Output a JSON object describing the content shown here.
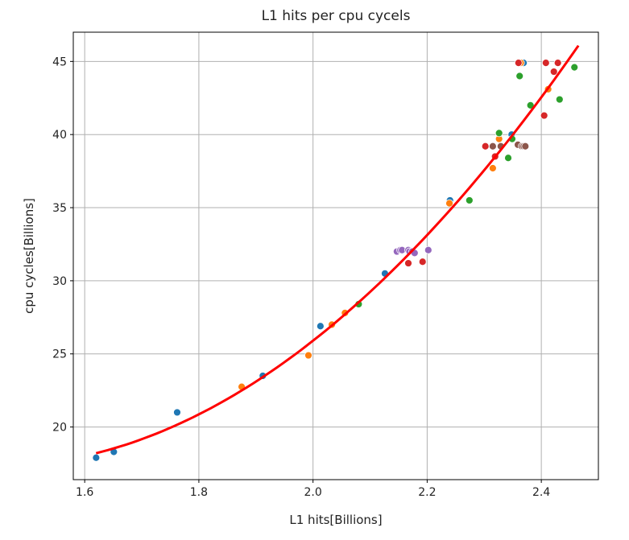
{
  "chart_data": {
    "type": "scatter",
    "title": "L1 hits per cpu cycels",
    "xlabel": "L1 hits[Billions]",
    "ylabel": "cpu cycles[Billions]",
    "xlim": [
      1.58,
      2.5
    ],
    "ylim": [
      16.4,
      47.0
    ],
    "xticks": [
      1.6,
      1.8,
      2.0,
      2.2,
      2.4
    ],
    "xtick_labels": [
      "1.6",
      "1.8",
      "2.0",
      "2.2",
      "2.4"
    ],
    "yticks": [
      20,
      25,
      30,
      35,
      40,
      45
    ],
    "ytick_labels": [
      "20",
      "25",
      "30",
      "35",
      "40",
      "45"
    ],
    "grid": true,
    "series": [
      {
        "color": "#1f77b4",
        "points": [
          [
            1.62,
            17.9
          ],
          [
            1.651,
            18.3
          ],
          [
            1.762,
            21.0
          ],
          [
            1.912,
            23.5
          ],
          [
            2.013,
            26.9
          ],
          [
            2.126,
            30.5
          ],
          [
            2.24,
            35.5
          ],
          [
            2.348,
            40.0
          ],
          [
            2.369,
            44.9
          ]
        ]
      },
      {
        "color": "#ff7f0e",
        "points": [
          [
            1.875,
            22.75
          ],
          [
            1.992,
            24.9
          ],
          [
            2.033,
            27.0
          ],
          [
            2.056,
            27.8
          ],
          [
            2.239,
            35.3
          ],
          [
            2.315,
            37.7
          ],
          [
            2.326,
            39.7
          ],
          [
            2.412,
            43.1
          ],
          [
            2.364,
            44.9
          ]
        ]
      },
      {
        "color": "#2ca02c",
        "points": [
          [
            2.08,
            28.4
          ],
          [
            2.274,
            35.5
          ],
          [
            2.362,
            44.0
          ],
          [
            2.326,
            40.1
          ],
          [
            2.349,
            39.7
          ],
          [
            2.342,
            38.4
          ],
          [
            2.381,
            42.0
          ],
          [
            2.432,
            42.4
          ],
          [
            2.458,
            44.6
          ]
        ]
      },
      {
        "color": "#d62728",
        "points": [
          [
            2.167,
            31.2
          ],
          [
            2.192,
            31.3
          ],
          [
            2.302,
            39.2
          ],
          [
            2.319,
            38.5
          ],
          [
            2.36,
            44.9
          ],
          [
            2.408,
            44.9
          ],
          [
            2.429,
            44.9
          ],
          [
            2.422,
            44.3
          ],
          [
            2.405,
            41.3
          ]
        ]
      },
      {
        "color": "#9467bd",
        "points": [
          [
            2.147,
            32.0
          ],
          [
            2.153,
            32.1
          ],
          [
            2.156,
            32.1
          ],
          [
            2.167,
            32.1
          ],
          [
            2.169,
            32.0
          ],
          [
            2.174,
            32.0
          ],
          [
            2.178,
            31.9
          ],
          [
            2.202,
            32.1
          ]
        ]
      },
      {
        "color": "#8c564b",
        "points": [
          [
            2.315,
            39.2
          ],
          [
            2.329,
            39.2
          ],
          [
            2.359,
            39.3
          ],
          [
            2.366,
            39.2
          ],
          [
            2.369,
            39.2
          ],
          [
            2.372,
            39.2
          ]
        ]
      }
    ],
    "fit_curve": {
      "color": "#ff0000",
      "type": "quadratic",
      "x_range": [
        1.62,
        2.465
      ],
      "coefficients_about_x2": {
        "a": 27.4,
        "b": 30.66,
        "c": 25.9
      }
    }
  }
}
